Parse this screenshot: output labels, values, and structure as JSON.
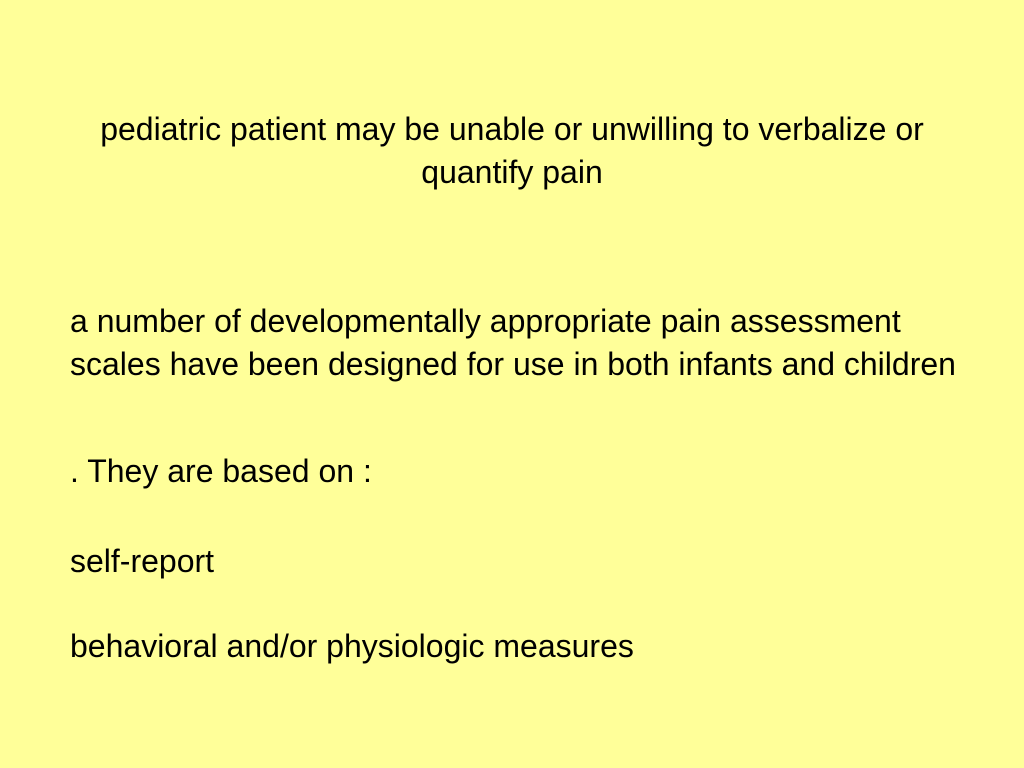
{
  "slide": {
    "background_color": "#ffff99",
    "text_color": "#000000",
    "font_family": "Arial",
    "heading": {
      "text": "pediatric  patient  may  be  unable  or  unwilling  to  verbalize or  quantify  pain",
      "font_size": 32,
      "align": "center"
    },
    "paragraphs": [
      " a  number  of  developmentally  appropriate  pain  assessment  scales  have  been  designed  for  use  in both  infants and  children",
      ".   They  are  based  on :",
      " self-report",
      " behavioral and/or  physiologic  measures"
    ],
    "body_font_size": 32
  }
}
